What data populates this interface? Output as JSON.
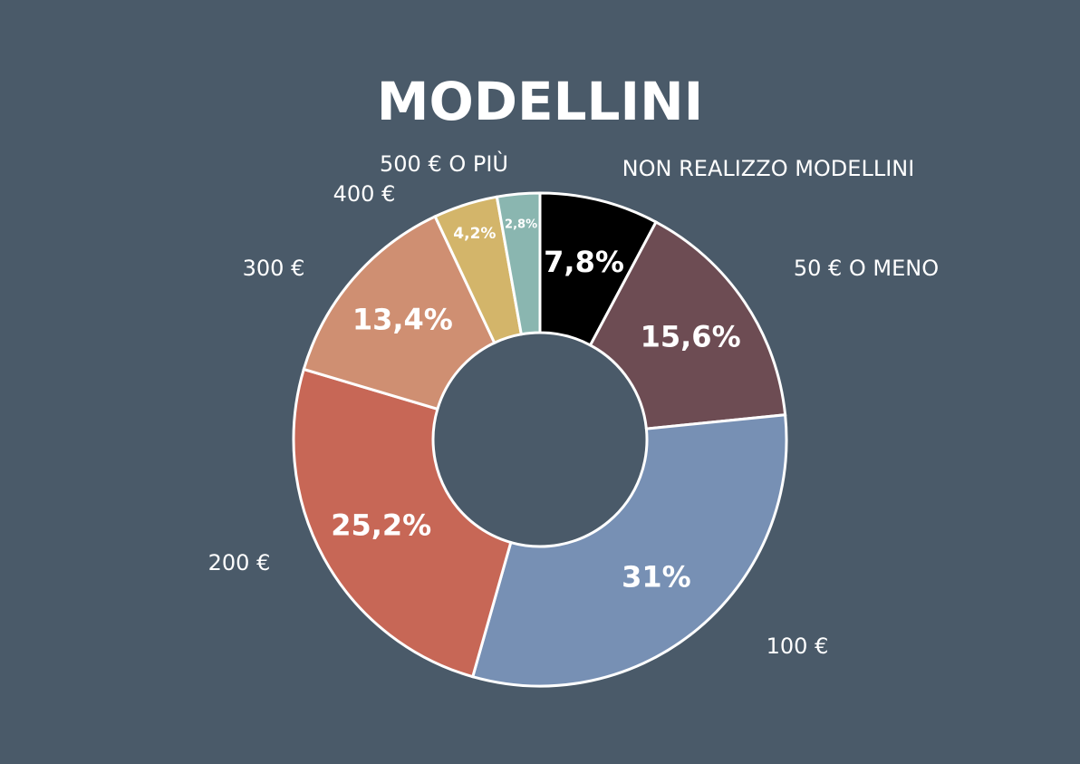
{
  "chart_data": {
    "type": "donut",
    "title": "MODELLINI",
    "categories": [
      "NON REALIZZO MODELLINI",
      "50 € O MENO",
      "100 €",
      "200 €",
      "300 €",
      "400 €",
      "500 € O PIÙ"
    ],
    "values": [
      7.8,
      15.6,
      31,
      25.2,
      13.4,
      4.2,
      2.8
    ],
    "value_labels": [
      "7,8%",
      "15,6%",
      "31%",
      "25,2%",
      "13,4%",
      "4,2%",
      "2,8%"
    ],
    "colors": [
      "#000000",
      "#6d4c53",
      "#7790b4",
      "#c76756",
      "#cf8f72",
      "#d3b56a",
      "#8ab6b0"
    ]
  }
}
